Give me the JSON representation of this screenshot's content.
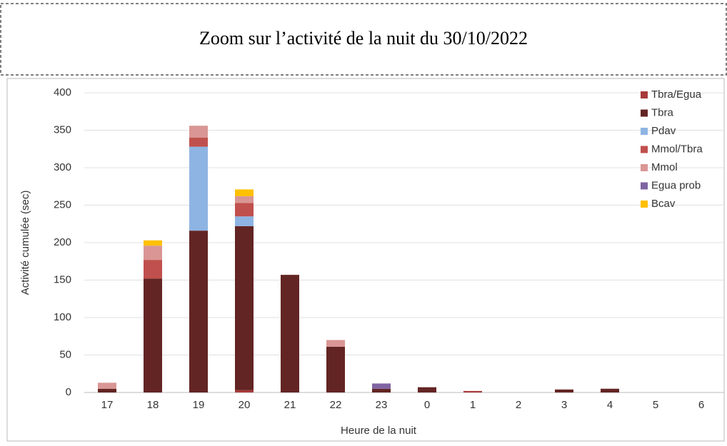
{
  "chart_data": {
    "type": "stacked_bar",
    "title": "Zoom sur l’activité de la nuit du 30/10/2022",
    "x_label": "Heure de la nuit",
    "y_label": "Activité cumulée (sec)",
    "categories": [
      "17",
      "18",
      "19",
      "20",
      "21",
      "22",
      "23",
      "0",
      "1",
      "2",
      "3",
      "4",
      "5",
      "6"
    ],
    "series": [
      {
        "name": "Tbra/Egua",
        "color": "#a83a3a",
        "values": [
          0,
          0,
          0,
          3,
          0,
          0,
          0,
          0,
          2,
          0,
          0,
          0,
          0,
          0
        ]
      },
      {
        "name": "Tbra",
        "color": "#632523",
        "values": [
          5,
          152,
          216,
          219,
          157,
          61,
          5,
          7,
          0,
          0,
          4,
          5,
          0,
          0
        ]
      },
      {
        "name": "Pdav",
        "color": "#8eb4e3",
        "values": [
          0,
          0,
          112,
          13,
          0,
          0,
          0,
          0,
          0,
          0,
          0,
          0,
          0,
          0
        ]
      },
      {
        "name": "Mmol/Tbra",
        "color": "#c0504d",
        "values": [
          0,
          25,
          12,
          18,
          0,
          0,
          0,
          0,
          0,
          0,
          0,
          0,
          0,
          0
        ]
      },
      {
        "name": "Mmol",
        "color": "#d99694",
        "values": [
          8,
          19,
          16,
          9,
          0,
          9,
          0,
          0,
          0,
          0,
          0,
          0,
          0,
          0
        ]
      },
      {
        "name": "Egua prob",
        "color": "#8064a2",
        "values": [
          0,
          0,
          0,
          0,
          0,
          0,
          7,
          0,
          0,
          0,
          0,
          0,
          0,
          0
        ]
      },
      {
        "name": "Bcav",
        "color": "#ffc000",
        "values": [
          0,
          7,
          0,
          9,
          0,
          0,
          0,
          0,
          0,
          0,
          0,
          0,
          0,
          0
        ]
      }
    ],
    "ylim": [
      0,
      400
    ],
    "yticks": [
      0,
      50,
      100,
      150,
      200,
      250,
      300,
      350,
      400
    ],
    "grid": true,
    "legend": "upper right"
  }
}
